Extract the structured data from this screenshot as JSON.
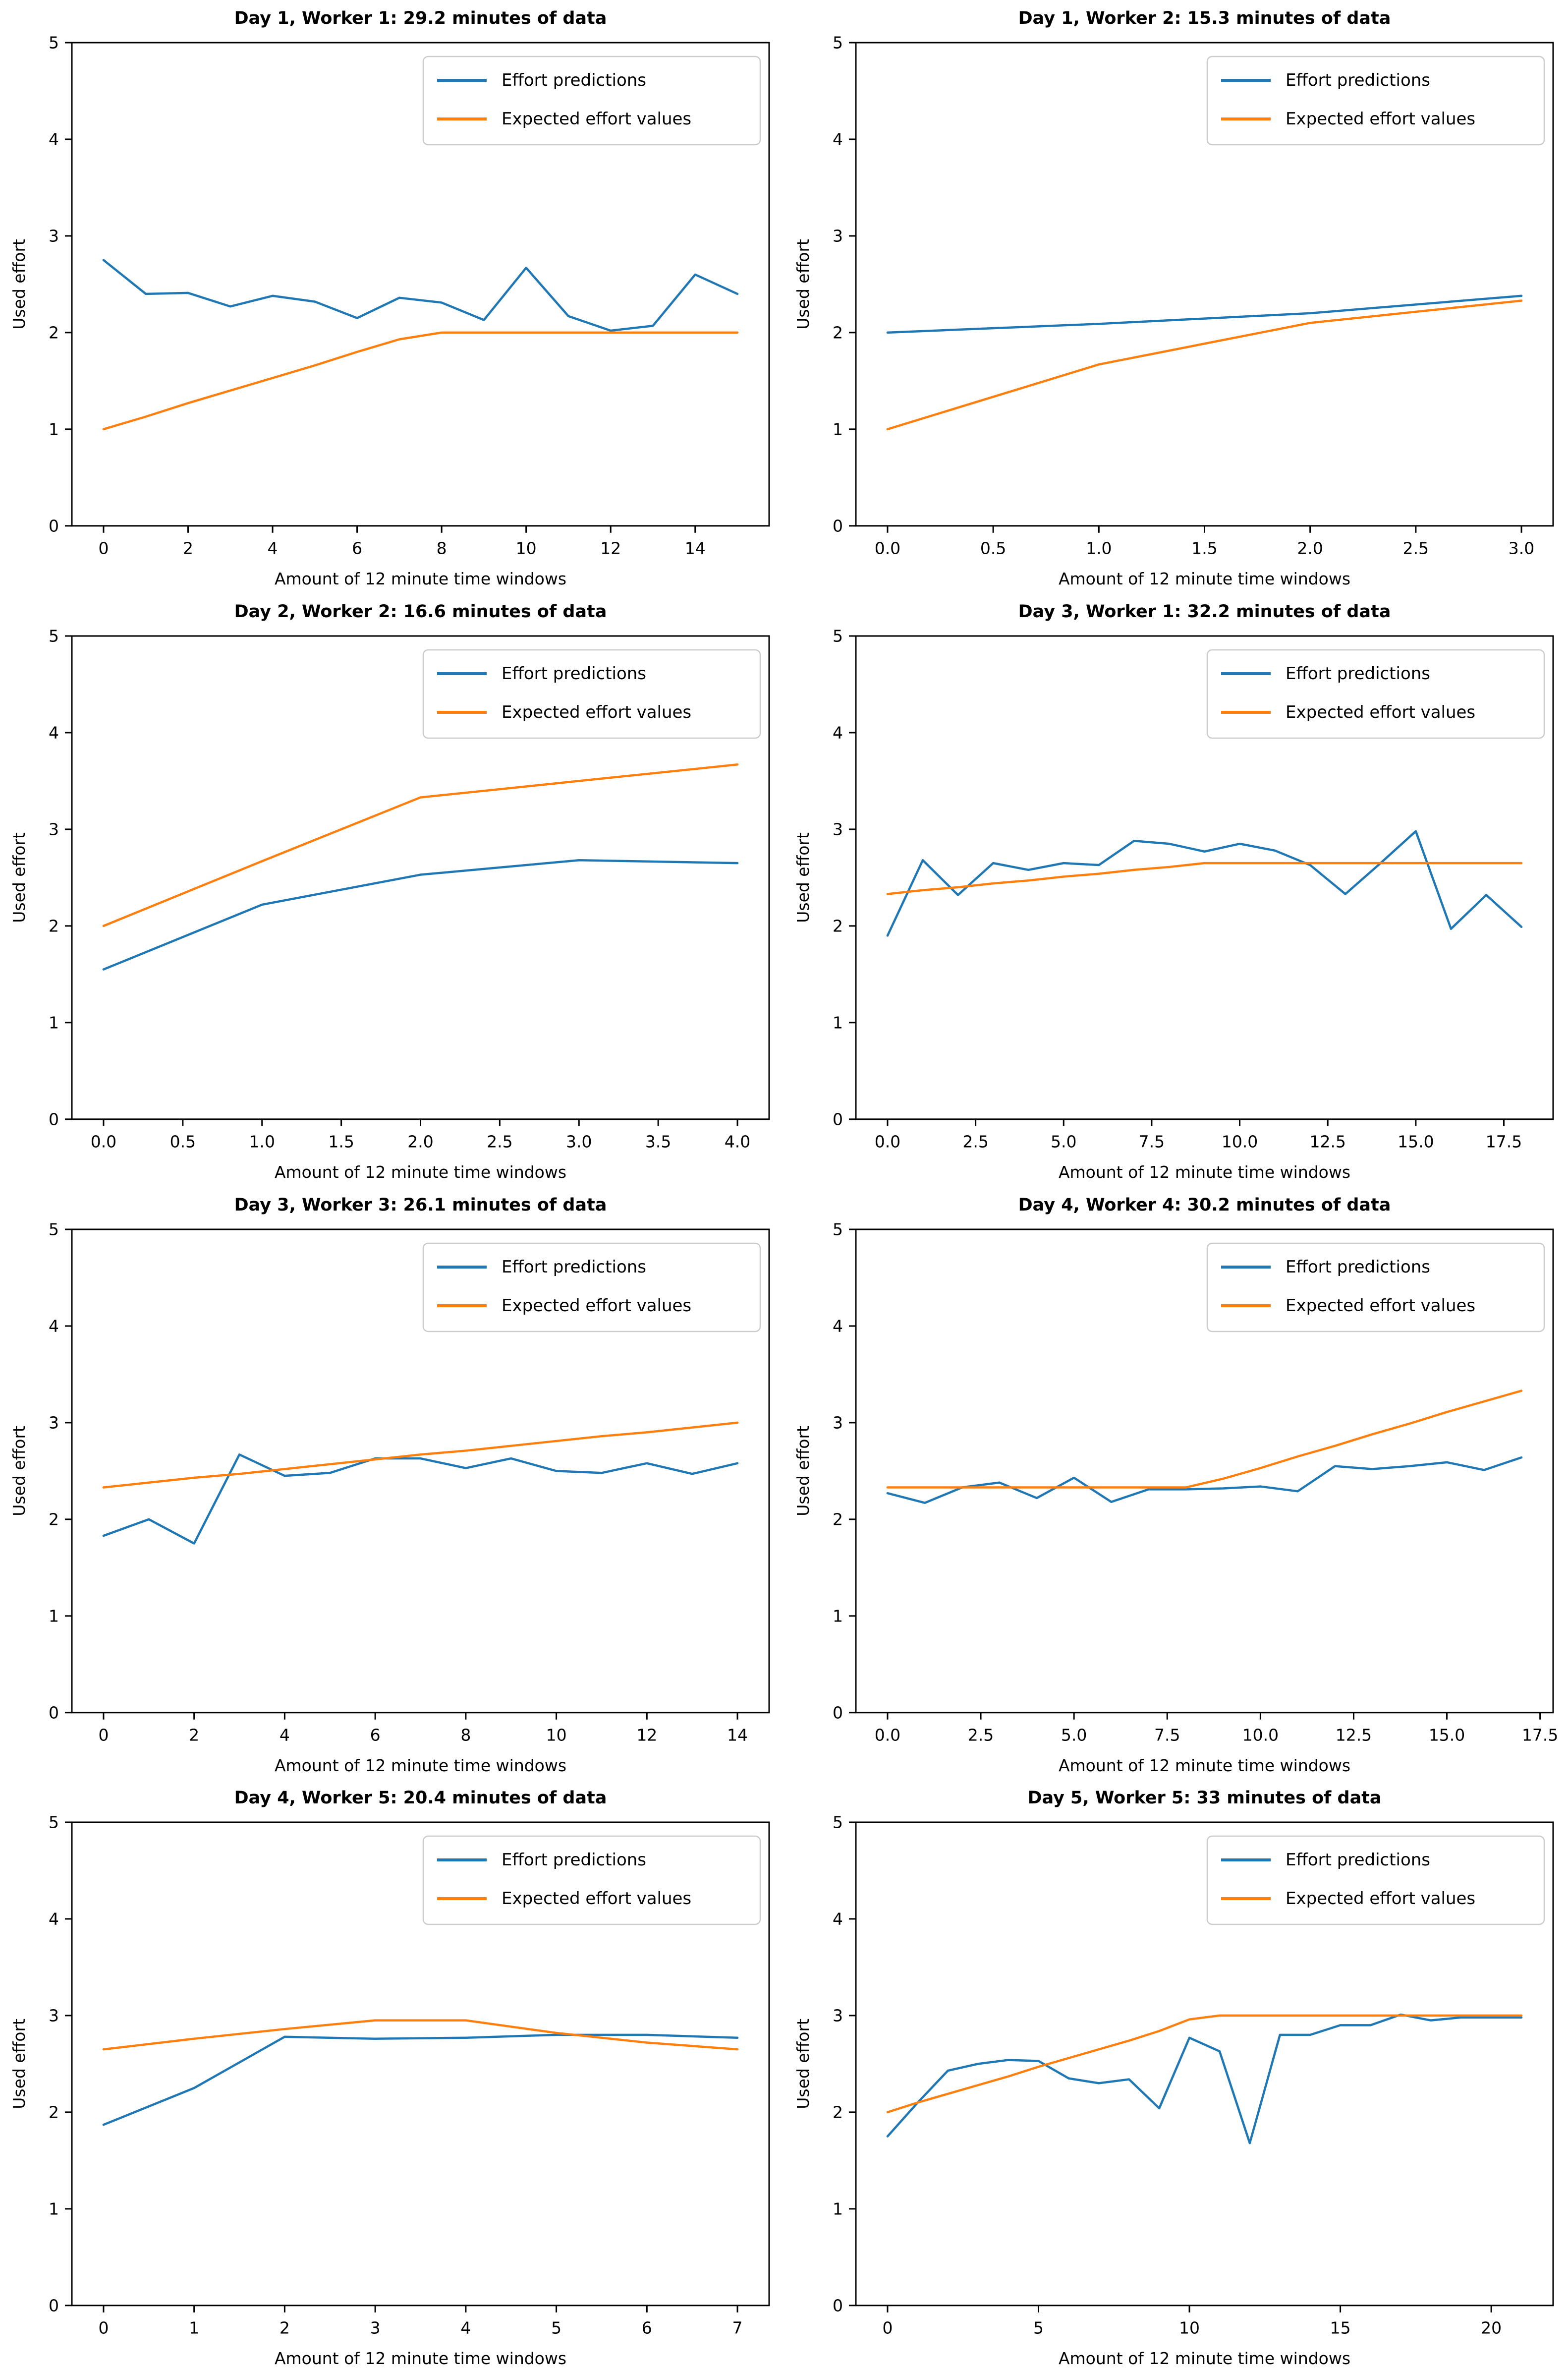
{
  "page": {
    "background": "#ffffff"
  },
  "colors": {
    "effort_predictions": "#1f77b4",
    "expected_effort_values": "#ff7f0e",
    "axis": "#000000",
    "legend_border": "#cccccc",
    "legend_background": "#ffffff"
  },
  "chart_data": [
    {
      "type": "line",
      "title": "Day 1, Worker 1: 29.2 minutes of data",
      "xlabel": "Amount of 12 minute time windows",
      "ylabel": "Used effort",
      "ylim": [
        0,
        5
      ],
      "grid": false,
      "legend_position": "upper right",
      "ytick_values": [
        0,
        1,
        2,
        3,
        4,
        5
      ],
      "ytick_labels": [
        "0",
        "1",
        "2",
        "3",
        "4",
        "5"
      ],
      "xtick_values": [
        0,
        2,
        4,
        6,
        8,
        10,
        12,
        14
      ],
      "xtick_labels": [
        "0",
        "2",
        "4",
        "6",
        "8",
        "10",
        "12",
        "14"
      ],
      "x": [
        0,
        1,
        2,
        3,
        4,
        5,
        6,
        7,
        8,
        9,
        10,
        11,
        12,
        13,
        14,
        15
      ],
      "series": [
        {
          "name": "Effort predictions",
          "color": "#1f77b4",
          "values": [
            2.75,
            2.4,
            2.41,
            2.27,
            2.38,
            2.32,
            2.15,
            2.36,
            2.31,
            2.13,
            2.67,
            2.17,
            2.02,
            2.07,
            2.6,
            2.4
          ]
        },
        {
          "name": "Expected effort values",
          "color": "#ff7f0e",
          "values": [
            1.0,
            1.13,
            1.27,
            1.4,
            1.53,
            1.66,
            1.8,
            1.93,
            2.0,
            2.0,
            2.0,
            2.0,
            2.0,
            2.0,
            2.0,
            2.0
          ]
        }
      ]
    },
    {
      "type": "line",
      "title": "Day 1, Worker 2: 15.3 minutes of data",
      "xlabel": "Amount of 12 minute time windows",
      "ylabel": "Used effort",
      "ylim": [
        0,
        5
      ],
      "grid": false,
      "legend_position": "upper right",
      "ytick_values": [
        0,
        1,
        2,
        3,
        4,
        5
      ],
      "ytick_labels": [
        "0",
        "1",
        "2",
        "3",
        "4",
        "5"
      ],
      "xtick_values": [
        0,
        0.5,
        1,
        1.5,
        2,
        2.5,
        3
      ],
      "xtick_labels": [
        "0.0",
        "0.5",
        "1.0",
        "1.5",
        "2.0",
        "2.5",
        "3.0"
      ],
      "x": [
        0,
        1,
        2,
        3
      ],
      "series": [
        {
          "name": "Effort predictions",
          "color": "#1f77b4",
          "values": [
            2.0,
            2.09,
            2.2,
            2.38
          ]
        },
        {
          "name": "Expected effort values",
          "color": "#ff7f0e",
          "values": [
            1.0,
            1.67,
            2.1,
            2.33
          ]
        }
      ]
    },
    {
      "type": "line",
      "title": "Day 2, Worker 2: 16.6 minutes of data",
      "xlabel": "Amount of 12 minute time windows",
      "ylabel": "Used effort",
      "ylim": [
        0,
        5
      ],
      "grid": false,
      "legend_position": "upper right",
      "ytick_values": [
        0,
        1,
        2,
        3,
        4,
        5
      ],
      "ytick_labels": [
        "0",
        "1",
        "2",
        "3",
        "4",
        "5"
      ],
      "xtick_values": [
        0,
        0.5,
        1,
        1.5,
        2,
        2.5,
        3,
        3.5,
        4
      ],
      "xtick_labels": [
        "0.0",
        "0.5",
        "1.0",
        "1.5",
        "2.0",
        "2.5",
        "3.0",
        "3.5",
        "4.0"
      ],
      "x": [
        0,
        1,
        2,
        3,
        4
      ],
      "series": [
        {
          "name": "Effort predictions",
          "color": "#1f77b4",
          "values": [
            1.55,
            2.22,
            2.53,
            2.68,
            2.65
          ]
        },
        {
          "name": "Expected effort values",
          "color": "#ff7f0e",
          "values": [
            2.0,
            2.67,
            3.33,
            3.5,
            3.67
          ]
        }
      ]
    },
    {
      "type": "line",
      "title": "Day 3, Worker 1: 32.2 minutes of data",
      "xlabel": "Amount of 12 minute time windows",
      "ylabel": "Used effort",
      "ylim": [
        0,
        5
      ],
      "grid": false,
      "legend_position": "upper right",
      "ytick_values": [
        0,
        1,
        2,
        3,
        4,
        5
      ],
      "ytick_labels": [
        "0",
        "1",
        "2",
        "3",
        "4",
        "5"
      ],
      "xtick_values": [
        0,
        2.5,
        5,
        7.5,
        10,
        12.5,
        15,
        17.5
      ],
      "xtick_labels": [
        "0.0",
        "2.5",
        "5.0",
        "7.5",
        "10.0",
        "12.5",
        "15.0",
        "17.5"
      ],
      "x": [
        0,
        1,
        2,
        3,
        4,
        5,
        6,
        7,
        8,
        9,
        10,
        11,
        12,
        13,
        14,
        15,
        16,
        17,
        18
      ],
      "series": [
        {
          "name": "Effort predictions",
          "color": "#1f77b4",
          "values": [
            1.9,
            2.68,
            2.32,
            2.65,
            2.58,
            2.65,
            2.63,
            2.88,
            2.85,
            2.77,
            2.85,
            2.78,
            2.63,
            2.33,
            2.65,
            2.98,
            1.97,
            2.32,
            1.99
          ]
        },
        {
          "name": "Expected effort values",
          "color": "#ff7f0e",
          "values": [
            2.33,
            2.37,
            2.4,
            2.44,
            2.47,
            2.51,
            2.54,
            2.58,
            2.61,
            2.65,
            2.65,
            2.65,
            2.65,
            2.65,
            2.65,
            2.65,
            2.65,
            2.65,
            2.65
          ]
        }
      ]
    },
    {
      "type": "line",
      "title": "Day 3, Worker 3: 26.1 minutes of data",
      "xlabel": "Amount of 12 minute time windows",
      "ylabel": "Used effort",
      "ylim": [
        0,
        5
      ],
      "grid": false,
      "legend_position": "upper right",
      "ytick_values": [
        0,
        1,
        2,
        3,
        4,
        5
      ],
      "ytick_labels": [
        "0",
        "1",
        "2",
        "3",
        "4",
        "5"
      ],
      "xtick_values": [
        0,
        2,
        4,
        6,
        8,
        10,
        12,
        14
      ],
      "xtick_labels": [
        "0",
        "2",
        "4",
        "6",
        "8",
        "10",
        "12",
        "14"
      ],
      "x": [
        0,
        1,
        2,
        3,
        4,
        5,
        6,
        7,
        8,
        9,
        10,
        11,
        12,
        13,
        14
      ],
      "series": [
        {
          "name": "Effort predictions",
          "color": "#1f77b4",
          "values": [
            1.83,
            2.0,
            1.75,
            2.67,
            2.45,
            2.48,
            2.63,
            2.63,
            2.53,
            2.63,
            2.5,
            2.48,
            2.58,
            2.47,
            2.58
          ]
        },
        {
          "name": "Expected effort values",
          "color": "#ff7f0e",
          "values": [
            2.33,
            2.38,
            2.43,
            2.47,
            2.52,
            2.57,
            2.62,
            2.67,
            2.71,
            2.76,
            2.81,
            2.86,
            2.9,
            2.95,
            3.0
          ]
        }
      ]
    },
    {
      "type": "line",
      "title": "Day 4, Worker 4: 30.2 minutes of data",
      "xlabel": "Amount of 12 minute time windows",
      "ylabel": "Used effort",
      "ylim": [
        0,
        5
      ],
      "grid": false,
      "legend_position": "upper right",
      "ytick_values": [
        0,
        1,
        2,
        3,
        4,
        5
      ],
      "ytick_labels": [
        "0",
        "1",
        "2",
        "3",
        "4",
        "5"
      ],
      "xtick_values": [
        0,
        2.5,
        5,
        7.5,
        10,
        12.5,
        15,
        17.5
      ],
      "xtick_labels": [
        "0.0",
        "2.5",
        "5.0",
        "7.5",
        "10.0",
        "12.5",
        "15.0",
        "17.5"
      ],
      "x": [
        0,
        1,
        2,
        3,
        4,
        5,
        6,
        7,
        8,
        9,
        10,
        11,
        12,
        13,
        14,
        15,
        16,
        17
      ],
      "series": [
        {
          "name": "Effort predictions",
          "color": "#1f77b4",
          "values": [
            2.27,
            2.17,
            2.33,
            2.38,
            2.22,
            2.43,
            2.18,
            2.31,
            2.31,
            2.32,
            2.34,
            2.29,
            2.55,
            2.52,
            2.55,
            2.59,
            2.51,
            2.64
          ]
        },
        {
          "name": "Expected effort values",
          "color": "#ff7f0e",
          "values": [
            2.33,
            2.33,
            2.33,
            2.33,
            2.33,
            2.33,
            2.33,
            2.33,
            2.33,
            2.42,
            2.53,
            2.65,
            2.76,
            2.88,
            2.99,
            3.11,
            3.22,
            3.33
          ]
        }
      ]
    },
    {
      "type": "line",
      "title": "Day 4, Worker 5: 20.4 minutes of data",
      "xlabel": "Amount of 12 minute time windows",
      "ylabel": "Used effort",
      "ylim": [
        0,
        5
      ],
      "grid": false,
      "legend_position": "upper right",
      "ytick_values": [
        0,
        1,
        2,
        3,
        4,
        5
      ],
      "ytick_labels": [
        "0",
        "1",
        "2",
        "3",
        "4",
        "5"
      ],
      "xtick_values": [
        0,
        1,
        2,
        3,
        4,
        5,
        6,
        7
      ],
      "xtick_labels": [
        "0",
        "1",
        "2",
        "3",
        "4",
        "5",
        "6",
        "7"
      ],
      "x": [
        0,
        1,
        2,
        3,
        4,
        5,
        6,
        7
      ],
      "series": [
        {
          "name": "Effort predictions",
          "color": "#1f77b4",
          "values": [
            1.87,
            2.25,
            2.78,
            2.76,
            2.77,
            2.8,
            2.8,
            2.77
          ]
        },
        {
          "name": "Expected effort values",
          "color": "#ff7f0e",
          "values": [
            2.65,
            2.76,
            2.86,
            2.95,
            2.95,
            2.82,
            2.72,
            2.65
          ]
        }
      ]
    },
    {
      "type": "line",
      "title": "Day 5, Worker 5: 33 minutes of data",
      "xlabel": "Amount of 12 minute time windows",
      "ylabel": "Used effort",
      "ylim": [
        0,
        5
      ],
      "grid": false,
      "legend_position": "upper right",
      "ytick_values": [
        0,
        1,
        2,
        3,
        4,
        5
      ],
      "ytick_labels": [
        "0",
        "1",
        "2",
        "3",
        "4",
        "5"
      ],
      "xtick_values": [
        0,
        5,
        10,
        15,
        20
      ],
      "xtick_labels": [
        "0",
        "5",
        "10",
        "15",
        "20"
      ],
      "x": [
        0,
        1,
        2,
        3,
        4,
        5,
        6,
        7,
        8,
        9,
        10,
        11,
        12,
        13,
        14,
        15,
        16,
        17,
        18,
        19,
        20,
        21
      ],
      "series": [
        {
          "name": "Effort predictions",
          "color": "#1f77b4",
          "values": [
            1.75,
            2.1,
            2.43,
            2.5,
            2.54,
            2.53,
            2.35,
            2.3,
            2.34,
            2.04,
            2.77,
            2.63,
            1.68,
            2.8,
            2.8,
            2.9,
            2.9,
            3.01,
            2.95,
            2.98,
            2.98,
            2.98
          ]
        },
        {
          "name": "Expected effort values",
          "color": "#ff7f0e",
          "values": [
            2.0,
            2.1,
            2.19,
            2.28,
            2.37,
            2.47,
            2.56,
            2.65,
            2.74,
            2.84,
            2.96,
            3.0,
            3.0,
            3.0,
            3.0,
            3.0,
            3.0,
            3.0,
            3.0,
            3.0,
            3.0,
            3.0
          ]
        }
      ]
    }
  ]
}
